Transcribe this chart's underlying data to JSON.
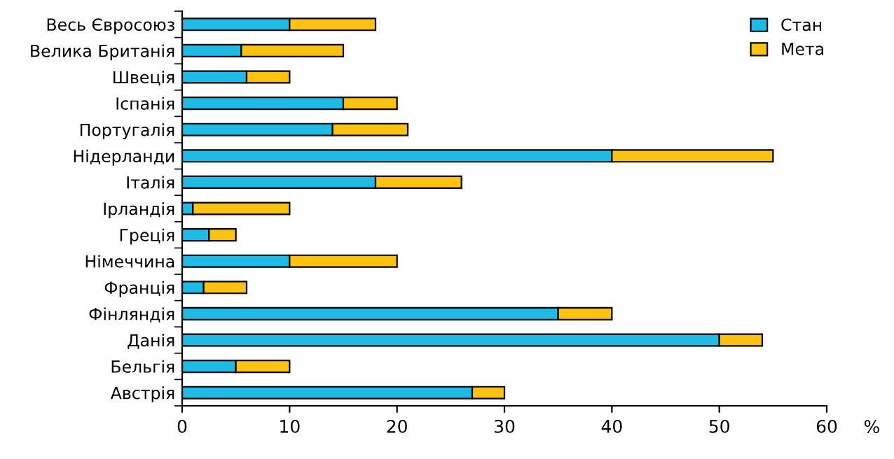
{
  "chart_data": {
    "type": "bar",
    "orientation": "horizontal",
    "stacked": true,
    "categories": [
      "Весь Євросоюз",
      "Велика Британія",
      "Швеція",
      "Іспанія",
      "Португалія",
      "Нідерланди",
      "Італія",
      "Ірландія",
      "Греція",
      "Німеччина",
      "Франція",
      "Фінляндія",
      "Данія",
      "Бельгія",
      "Австрія"
    ],
    "series": [
      {
        "name": "Стан",
        "color": "#1ebbe6",
        "values": [
          10,
          5.5,
          6,
          15,
          14,
          40,
          18,
          1,
          2.5,
          10,
          2,
          35,
          50,
          5,
          27
        ]
      },
      {
        "name": "Мета",
        "color": "#ffc20e",
        "values": [
          8,
          9.5,
          4,
          5,
          7,
          15,
          8,
          9,
          2.5,
          10,
          4,
          5,
          4,
          5,
          3
        ]
      }
    ],
    "xlim": [
      0,
      60
    ],
    "xticks": [
      0,
      10,
      20,
      30,
      40,
      50,
      60
    ],
    "xlabel": "%",
    "legend": "top right",
    "grid": false
  }
}
